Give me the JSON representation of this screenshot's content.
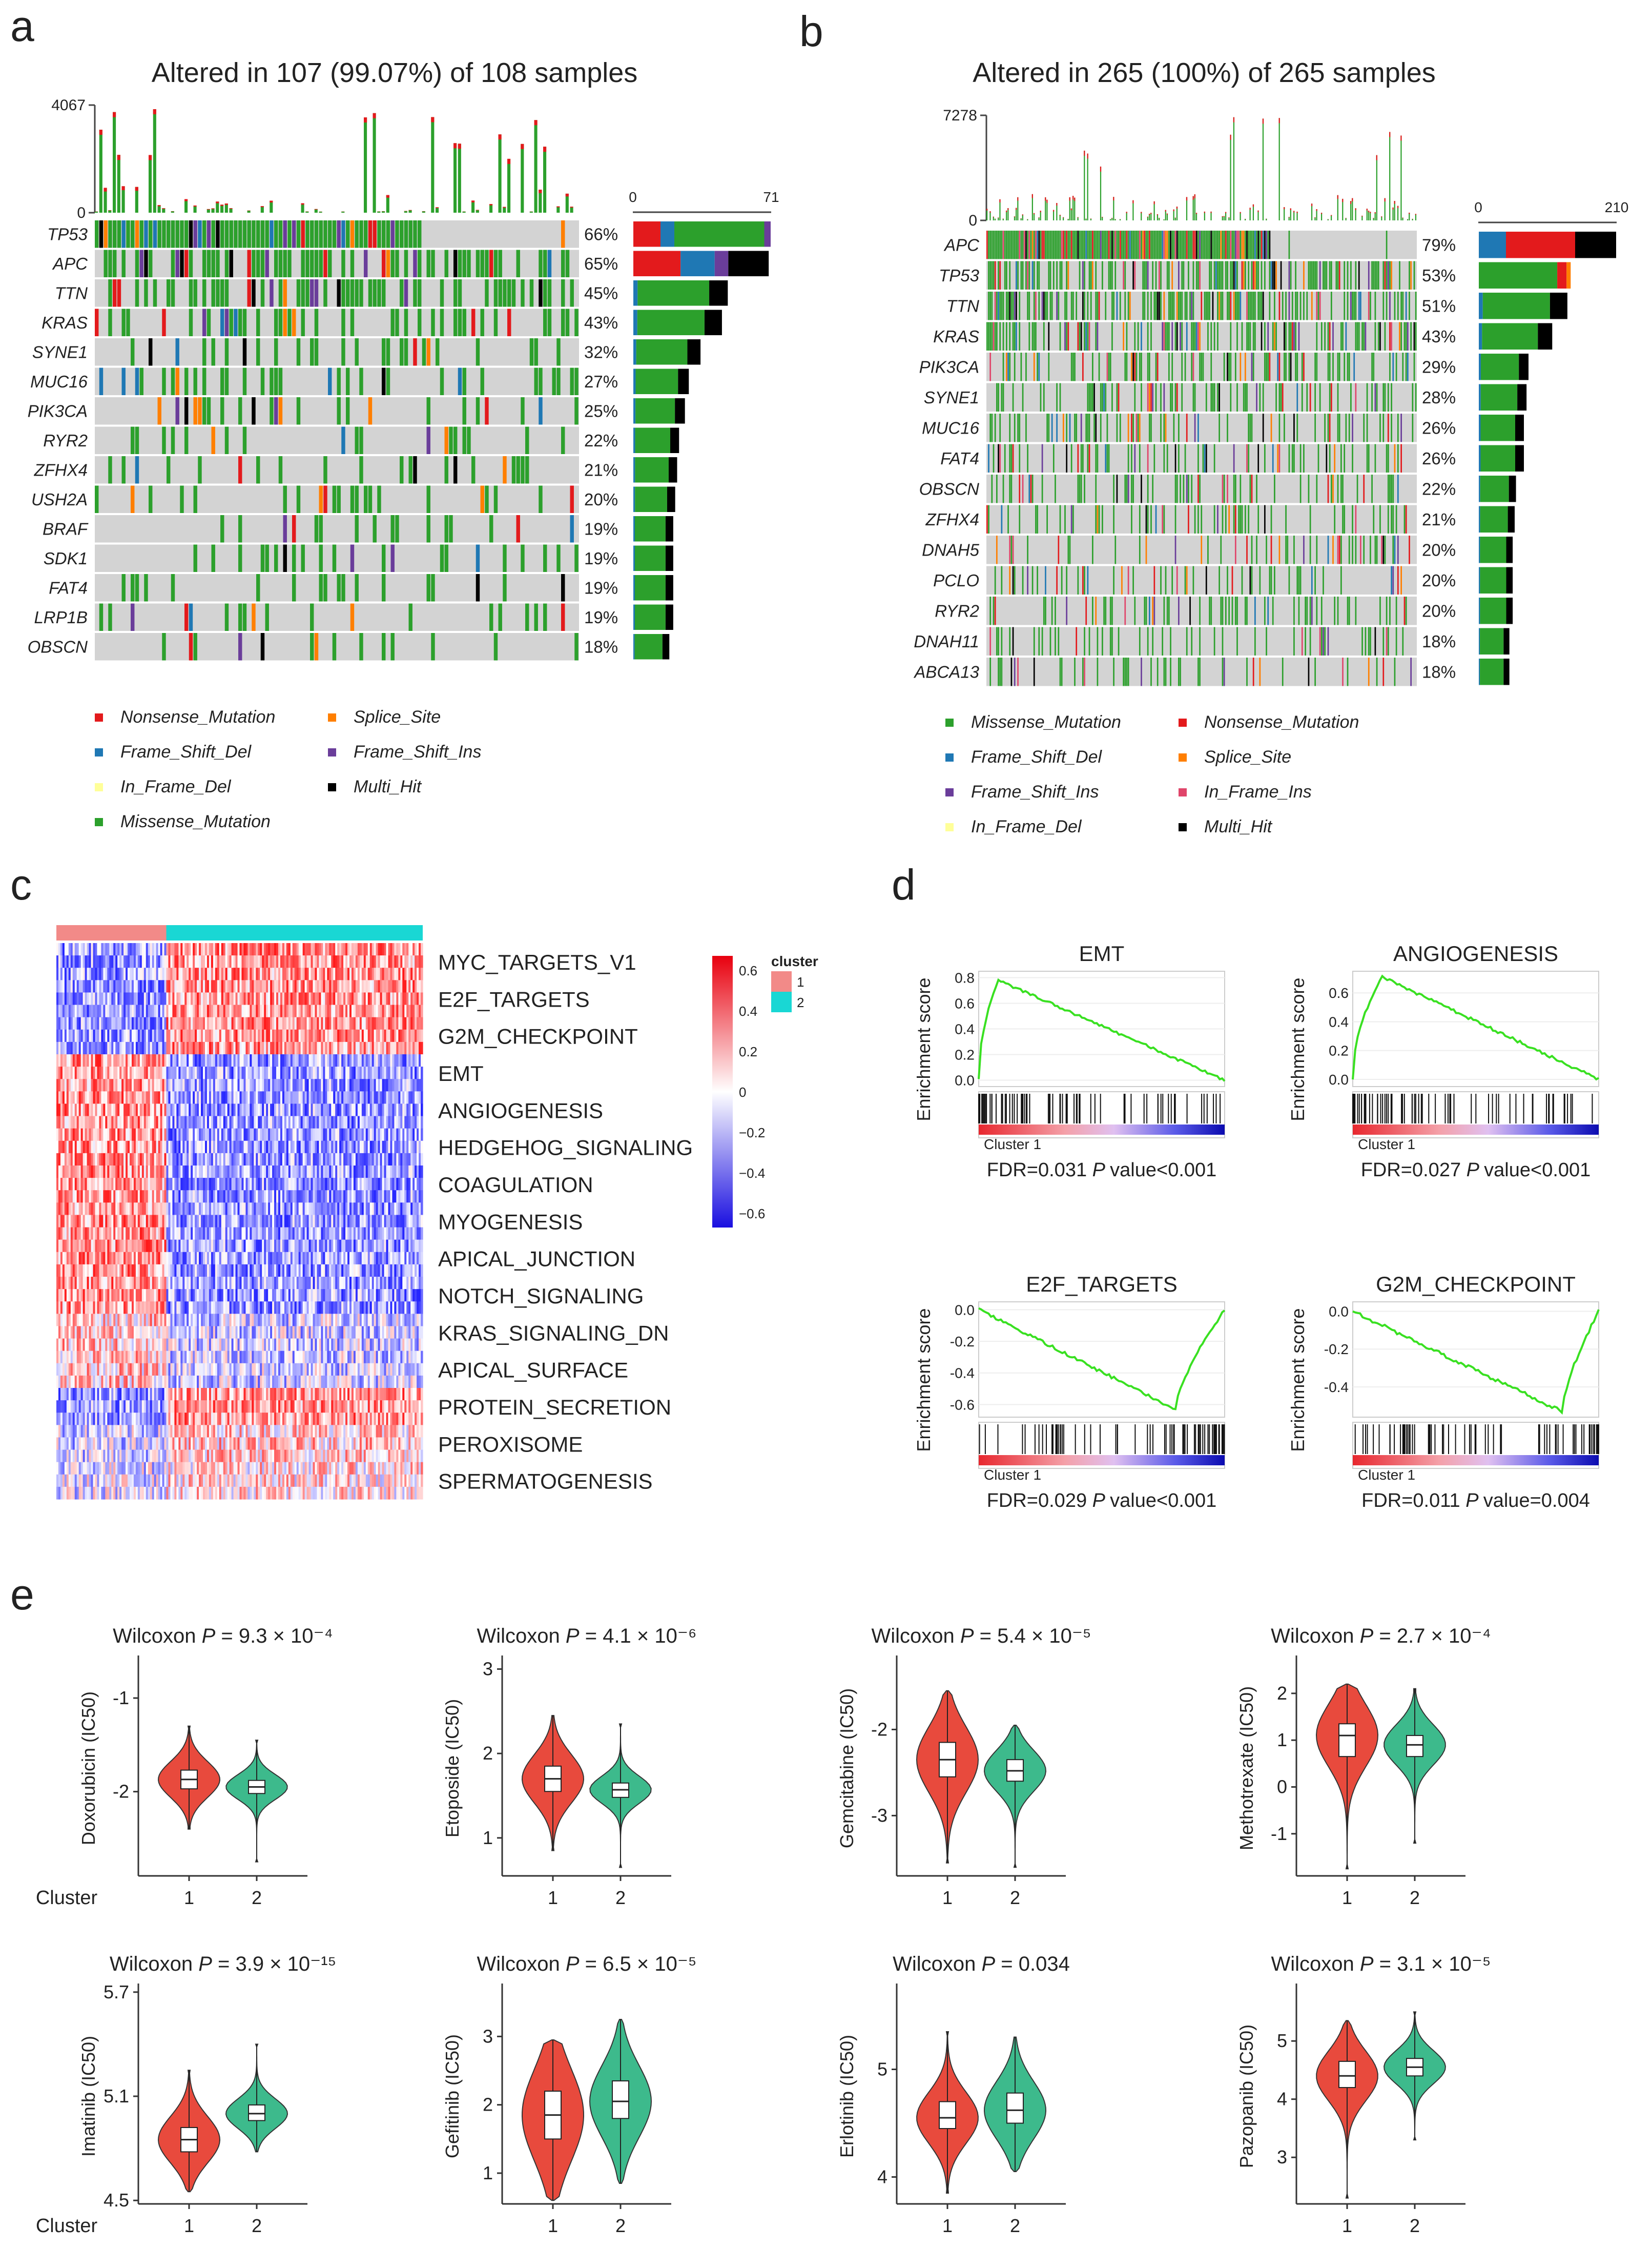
{
  "panel_letters": [
    "a",
    "b",
    "c",
    "d",
    "e"
  ],
  "colors": {
    "missense": "#2ca02c",
    "nonsense": "#e31a1c",
    "frame_shift_del": "#1f78b4",
    "splice_site": "#ff7f00",
    "frame_shift_ins": "#6a3d9a",
    "in_frame_del": "#ffff99",
    "in_frame_ins": "#e0456a",
    "multi_hit": "#000000",
    "none": "#d3d3d3",
    "cluster1": "#e84a3d",
    "cluster2": "#3dba8c",
    "gsea_line": "#39e021",
    "heat_high": "#e8000e",
    "heat_low": "#1a0fe0",
    "cl1_bar": "#f28a88",
    "cl2_bar": "#19d7d4"
  },
  "legend_labels": {
    "nonsense": "Nonsense_Mutation",
    "splice": "Splice_Site",
    "fsdel": "Frame_Shift_Del",
    "fsins": "Frame_Shift_Ins",
    "ifdel": "In_Frame_Del",
    "multi": "Multi_Hit",
    "missense": "Missense_Mutation",
    "ifins": "In_Frame_Ins"
  },
  "panel_a": {
    "title": "Altered in 107 (99.07%) of 108 samples",
    "tmb_max": "4067",
    "tmb_min": "0",
    "side_axis": [
      "0",
      "71"
    ],
    "genes": [
      "TP53",
      "APC",
      "TTN",
      "KRAS",
      "SYNE1",
      "MUC16",
      "PIK3CA",
      "RYR2",
      "ZFHX4",
      "USH2A",
      "BRAF",
      "SDK1",
      "FAT4",
      "LRP1B",
      "OBSCN"
    ],
    "percents": [
      "66%",
      "65%",
      "45%",
      "43%",
      "32%",
      "27%",
      "25%",
      "22%",
      "21%",
      "20%",
      "19%",
      "19%",
      "19%",
      "19%",
      "18%"
    ],
    "side_counts": [
      71,
      70,
      49,
      46,
      35,
      29,
      27,
      24,
      23,
      22,
      21,
      21,
      21,
      21,
      19
    ]
  },
  "panel_b": {
    "title": "Altered in 265 (100%) of 265 samples",
    "tmb_max": "7278",
    "tmb_min": "0",
    "side_axis": [
      "0",
      "210"
    ],
    "genes": [
      "APC",
      "TP53",
      "TTN",
      "KRAS",
      "PIK3CA",
      "SYNE1",
      "MUC16",
      "FAT4",
      "OBSCN",
      "ZFHX4",
      "DNAH5",
      "PCLO",
      "RYR2",
      "DNAH11",
      "ABCA13"
    ],
    "percents": [
      "79%",
      "53%",
      "51%",
      "43%",
      "29%",
      "28%",
      "26%",
      "26%",
      "22%",
      "21%",
      "20%",
      "20%",
      "20%",
      "18%",
      "18%"
    ],
    "side_counts": [
      210,
      141,
      136,
      113,
      77,
      74,
      70,
      70,
      58,
      56,
      53,
      53,
      53,
      48,
      48
    ]
  },
  "panel_c": {
    "pathways": [
      "MYC_TARGETS_V1",
      "E2F_TARGETS",
      "G2M_CHECKPOINT",
      "EMT",
      "ANGIOGENESIS",
      "HEDGEHOG_SIGNALING",
      "COAGULATION",
      "MYOGENESIS",
      "APICAL_JUNCTION",
      "NOTCH_SIGNALING",
      "KRAS_SIGNALING_DN",
      "APICAL_SURFACE",
      "PROTEIN_SECRETION",
      "PEROXISOME",
      "SPERMATOGENESIS"
    ],
    "scale_ticks": [
      "0.6",
      "0.4",
      "0.2",
      "0",
      "−0.2",
      "−0.4",
      "−0.6"
    ],
    "legend_title": "cluster",
    "legend_items": [
      "1",
      "2"
    ]
  },
  "panel_d": {
    "ylabel": "Enrichment score",
    "cluster_label": "Cluster 1",
    "plots": [
      {
        "title": "EMT",
        "fdr": "FDR=0.031",
        "pval": "value<0.001",
        "yticks": [
          "0.8",
          "0.6",
          "0.4",
          "0.2",
          "0.0"
        ],
        "ylim": [
          -0.05,
          0.85
        ],
        "peak": 0.78,
        "peak_at": 0.08,
        "sign": 1
      },
      {
        "title": "ANGIOGENESIS",
        "fdr": "FDR=0.027",
        "pval": "value<0.001",
        "yticks": [
          "0.6",
          "0.4",
          "0.2",
          "0.0"
        ],
        "ylim": [
          -0.05,
          0.75
        ],
        "peak": 0.71,
        "peak_at": 0.12,
        "sign": 1
      },
      {
        "title": "E2F_TARGETS",
        "fdr": "FDR=0.029",
        "pval": "value<0.001",
        "yticks": [
          "0.0",
          "-0.2",
          "-0.4",
          "-0.6"
        ],
        "ylim": [
          -0.68,
          0.05
        ],
        "peak": -0.63,
        "peak_at": 0.8,
        "sign": -1
      },
      {
        "title": "G2M_CHECKPOINT",
        "fdr": "FDR=0.011",
        "pval": "value=0.004",
        "yticks": [
          "0.0",
          "-0.2",
          "-0.4"
        ],
        "ylim": [
          -0.56,
          0.05
        ],
        "peak": -0.53,
        "peak_at": 0.85,
        "sign": -1
      }
    ]
  },
  "chart_data": [
    {
      "type": "violin",
      "title": "Wilcoxon P = 9.3 × 10⁻⁴",
      "drug": "Doxorubicin",
      "ylabel": "Doxorubicin (IC50)",
      "categories": [
        "1",
        "2"
      ],
      "ylim": [
        -2.9,
        -0.6
      ],
      "yticks": [
        "-1",
        "-2"
      ],
      "yticks_v": [
        -1,
        -2
      ],
      "series": [
        {
          "name": "Cluster 1",
          "median": -1.87,
          "q1": -1.97,
          "q3": -1.77,
          "min": -2.4,
          "max": -1.3
        },
        {
          "name": "Cluster 2",
          "median": -1.95,
          "q1": -2.02,
          "q3": -1.88,
          "min": -2.75,
          "max": -1.45
        }
      ]
    },
    {
      "type": "violin",
      "title": "Wilcoxon P = 4.1 × 10⁻⁶",
      "drug": "Etoposide",
      "ylabel": "Etoposide (IC50)",
      "categories": [
        "1",
        "2"
      ],
      "ylim": [
        0.55,
        3.1
      ],
      "yticks": [
        "3",
        "2",
        "1"
      ],
      "yticks_v": [
        3,
        2,
        1
      ],
      "series": [
        {
          "name": "Cluster 1",
          "median": 1.7,
          "q1": 1.55,
          "q3": 1.85,
          "min": 0.85,
          "max": 2.45
        },
        {
          "name": "Cluster 2",
          "median": 1.57,
          "q1": 1.48,
          "q3": 1.65,
          "min": 0.65,
          "max": 2.35
        }
      ]
    },
    {
      "type": "violin",
      "title": "Wilcoxon P = 5.4 × 10⁻⁵",
      "drug": "Gemcitabine",
      "ylabel": "Gemcitabine (IC50)",
      "categories": [
        "1",
        "2"
      ],
      "ylim": [
        -3.7,
        -1.2
      ],
      "yticks": [
        "-2",
        "-3"
      ],
      "yticks_v": [
        -2,
        -3
      ],
      "series": [
        {
          "name": "Cluster 1",
          "median": -2.35,
          "q1": -2.55,
          "q3": -2.15,
          "min": -3.55,
          "max": -1.55
        },
        {
          "name": "Cluster 2",
          "median": -2.48,
          "q1": -2.6,
          "q3": -2.35,
          "min": -3.6,
          "max": -1.95
        }
      ]
    },
    {
      "type": "violin",
      "title": "Wilcoxon P = 2.7 × 10⁻⁴",
      "drug": "Methotrexate",
      "ylabel": "Methotrexate (IC50)",
      "categories": [
        "1",
        "2"
      ],
      "ylim": [
        -1.9,
        2.7
      ],
      "yticks": [
        "2",
        "1",
        "0",
        "-1"
      ],
      "yticks_v": [
        2,
        1,
        0,
        -1
      ],
      "series": [
        {
          "name": "Cluster 1",
          "median": 1.1,
          "q1": 0.65,
          "q3": 1.35,
          "min": -1.75,
          "max": 2.2
        },
        {
          "name": "Cluster 2",
          "median": 0.9,
          "q1": 0.65,
          "q3": 1.1,
          "min": -1.2,
          "max": 2.1
        }
      ]
    },
    {
      "type": "violin",
      "title": "Wilcoxon P = 3.9 × 10⁻¹⁵",
      "drug": "Imatinib",
      "ylabel": "Imatinib (IC50)",
      "categories": [
        "1",
        "2"
      ],
      "ylim": [
        4.48,
        5.72
      ],
      "yticks": [
        "5.7",
        "5.1",
        "4.5"
      ],
      "yticks_v": [
        5.7,
        5.1,
        4.5
      ],
      "series": [
        {
          "name": "Cluster 1",
          "median": 4.85,
          "q1": 4.78,
          "q3": 4.92,
          "min": 4.55,
          "max": 5.25
        },
        {
          "name": "Cluster 2",
          "median": 5.0,
          "q1": 4.96,
          "q3": 5.05,
          "min": 4.78,
          "max": 5.4
        }
      ]
    },
    {
      "type": "violin",
      "title": "Wilcoxon P = 6.5 × 10⁻⁵",
      "drug": "Gefitinib",
      "ylabel": "Gefitinib (IC50)",
      "categories": [
        "1",
        "2"
      ],
      "ylim": [
        0.55,
        3.7
      ],
      "yticks": [
        "3",
        "2",
        "1"
      ],
      "yticks_v": [
        3,
        2,
        1
      ],
      "series": [
        {
          "name": "Cluster 1",
          "median": 1.85,
          "q1": 1.5,
          "q3": 2.2,
          "min": 0.6,
          "max": 2.95
        },
        {
          "name": "Cluster 2",
          "median": 2.05,
          "q1": 1.8,
          "q3": 2.35,
          "min": 0.85,
          "max": 3.25
        }
      ]
    },
    {
      "type": "violin",
      "title": "Wilcoxon P = 0.034",
      "drug": "Erlotinib",
      "ylabel": "Erlotinib (IC50)",
      "categories": [
        "1",
        "2"
      ],
      "ylim": [
        3.75,
        5.75
      ],
      "yticks": [
        "5",
        "4"
      ],
      "yticks_v": [
        5,
        4
      ],
      "series": [
        {
          "name": "Cluster 1",
          "median": 4.55,
          "q1": 4.45,
          "q3": 4.7,
          "min": 3.85,
          "max": 5.35
        },
        {
          "name": "Cluster 2",
          "median": 4.62,
          "q1": 4.5,
          "q3": 4.78,
          "min": 4.05,
          "max": 5.3
        }
      ]
    },
    {
      "type": "violin",
      "title": "Wilcoxon P = 3.1 × 10⁻⁵",
      "drug": "Pazopanib",
      "ylabel": "Pazopanib (IC50)",
      "categories": [
        "1",
        "2"
      ],
      "ylim": [
        2.2,
        5.9
      ],
      "yticks": [
        "5",
        "4",
        "3"
      ],
      "yticks_v": [
        5,
        4,
        3
      ],
      "series": [
        {
          "name": "Cluster 1",
          "median": 4.4,
          "q1": 4.2,
          "q3": 4.65,
          "min": 2.3,
          "max": 5.35
        },
        {
          "name": "Cluster 2",
          "median": 4.55,
          "q1": 4.4,
          "q3": 4.7,
          "min": 3.3,
          "max": 5.5
        }
      ]
    }
  ],
  "violin_common": {
    "xlabel": "Cluster",
    "wilcoxon": "Wilcoxon",
    "p": "P"
  }
}
